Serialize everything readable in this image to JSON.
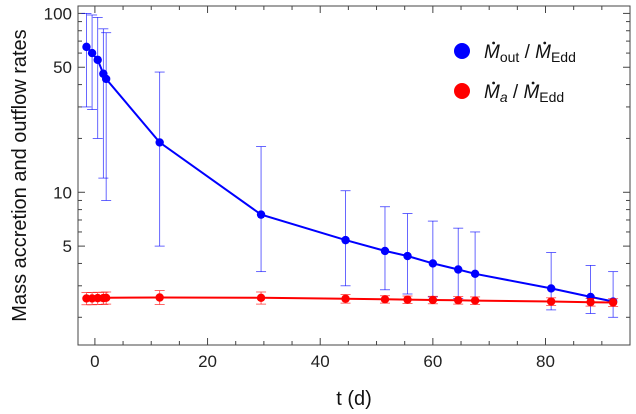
{
  "chart_data": {
    "type": "line",
    "title": "",
    "xlabel": "t (d)",
    "ylabel": "Mass accretion and outflow rates",
    "xlim": [
      -3,
      95
    ],
    "ylim": [
      1.4,
      110
    ],
    "yscale": "log",
    "x_ticks": [
      0,
      20,
      40,
      60,
      80
    ],
    "x_tick_labels": [
      "0",
      "20",
      "40",
      "60",
      "80"
    ],
    "y_ticks": [
      5,
      10,
      50,
      100
    ],
    "y_tick_labels": [
      "5",
      "10",
      "50",
      "100"
    ],
    "grid": false,
    "legend_position": "top-right",
    "legend": [
      {
        "m": "M",
        "sub1": "out",
        "sep": " / ",
        "m2": "M",
        "sub2": "Edd",
        "color": "#0000ff"
      },
      {
        "m": "M",
        "sub1": "a",
        "sep": " / ",
        "m2": "M",
        "sub2": "Edd",
        "color": "#ff0000"
      }
    ],
    "series": [
      {
        "color": "#0000ff",
        "x": [
          -1.5,
          -0.5,
          0.5,
          1.5,
          2.0,
          11.5,
          29.5,
          44.5,
          51.5,
          55.5,
          60.0,
          64.5,
          67.5,
          81.0,
          88.0,
          92.0
        ],
        "y": [
          65,
          60,
          55,
          46,
          43,
          19,
          7.5,
          5.4,
          4.7,
          4.4,
          4.0,
          3.7,
          3.5,
          2.9,
          2.6,
          2.45
        ],
        "err_lo": [
          30,
          29,
          20,
          12,
          9,
          5,
          3.6,
          3.0,
          2.85,
          2.7,
          2.6,
          2.55,
          2.5,
          2.2,
          2.1,
          2.0
        ],
        "err_hi": [
          100,
          98,
          95,
          82,
          78,
          47,
          18,
          10.2,
          8.3,
          7.6,
          6.9,
          6.3,
          6.0,
          4.6,
          3.9,
          3.6
        ]
      },
      {
        "color": "#ff0000",
        "x": [
          -1.5,
          -0.5,
          0.5,
          1.5,
          2.0,
          11.5,
          29.5,
          44.5,
          51.5,
          55.5,
          60.0,
          64.5,
          67.5,
          81.0,
          88.0,
          92.0
        ],
        "y": [
          2.55,
          2.55,
          2.56,
          2.56,
          2.57,
          2.58,
          2.57,
          2.54,
          2.52,
          2.51,
          2.5,
          2.49,
          2.48,
          2.45,
          2.43,
          2.42
        ],
        "err_lo": [
          2.35,
          2.35,
          2.36,
          2.36,
          2.37,
          2.36,
          2.37,
          2.4,
          2.4,
          2.39,
          2.38,
          2.37,
          2.36,
          2.33,
          2.31,
          2.3
        ],
        "err_hi": [
          2.75,
          2.75,
          2.76,
          2.76,
          2.77,
          2.82,
          2.77,
          2.68,
          2.64,
          2.63,
          2.62,
          2.61,
          2.6,
          2.57,
          2.55,
          2.54
        ]
      }
    ]
  }
}
